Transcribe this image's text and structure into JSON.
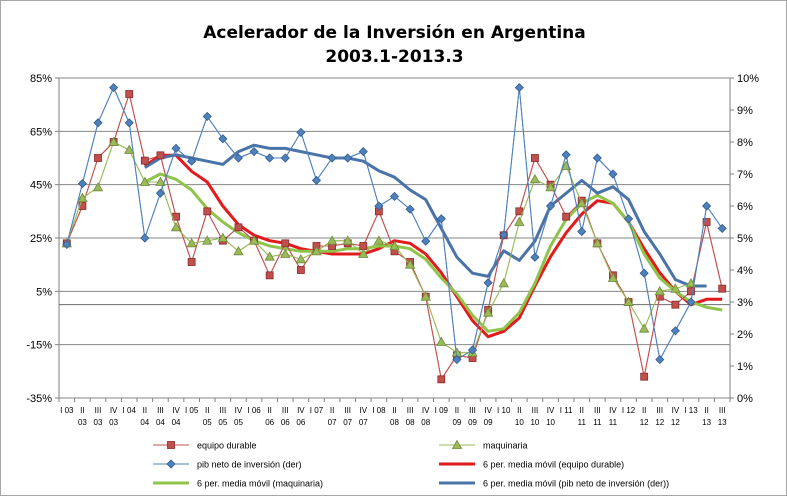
{
  "chart_data": {
    "type": "line",
    "title": "Acelerador de la Inversión en Argentina",
    "subtitle": "2003.1-2013.3",
    "y_left": {
      "min": -35,
      "max": 85,
      "ticks": [
        85,
        65,
        45,
        25,
        5,
        -15,
        -35
      ],
      "tick_labels": [
        "85%",
        "65%",
        "45%",
        "25%",
        "5%",
        "-15%",
        "-35%"
      ]
    },
    "y_right": {
      "min": 0,
      "max": 10,
      "ticks": [
        0,
        1,
        2,
        3,
        4,
        5,
        6,
        7,
        8,
        9,
        10
      ],
      "tick_labels": [
        "0%",
        "1%",
        "2%",
        "3%",
        "4%",
        "5%",
        "6%",
        "7%",
        "8%",
        "9%",
        "10%"
      ]
    },
    "x_quarters": [
      "I",
      "II",
      "III",
      "IV",
      "I",
      "II",
      "III",
      "IV",
      "I",
      "II",
      "III",
      "IV",
      "I",
      "II",
      "III",
      "IV",
      "I",
      "II",
      "III",
      "IV",
      "I",
      "II",
      "III",
      "IV",
      "I",
      "II",
      "III",
      "IV",
      "I",
      "II",
      "III",
      "IV",
      "I",
      "II",
      "III",
      "IV",
      "I",
      "II",
      "III",
      "IV",
      "I",
      "II",
      "III"
    ],
    "x_years": [
      "03",
      "03",
      "03",
      "03",
      "04",
      "04",
      "04",
      "04",
      "05",
      "05",
      "05",
      "05",
      "06",
      "06",
      "06",
      "06",
      "07",
      "07",
      "07",
      "07",
      "08",
      "08",
      "08",
      "08",
      "09",
      "09",
      "09",
      "09",
      "10",
      "10",
      "10",
      "10",
      "11",
      "11",
      "11",
      "11",
      "12",
      "12",
      "12",
      "12",
      "13",
      "13",
      "13"
    ],
    "x_year_row1_idx": [
      0,
      4,
      8,
      12,
      16,
      20,
      24,
      28,
      32,
      36,
      40
    ],
    "x_year_row2_idx": [
      1,
      2,
      3,
      5,
      6,
      7,
      9,
      10,
      11,
      13,
      14,
      15,
      17,
      18,
      19,
      21,
      22,
      23,
      25,
      26,
      27,
      29,
      30,
      31,
      33,
      34,
      35,
      37,
      38,
      39,
      41,
      42
    ],
    "series": [
      {
        "name": "equipo durable",
        "axis": "left",
        "color": "#c0504d",
        "marker": "square",
        "values": [
          23,
          37,
          55,
          61,
          79,
          54,
          56,
          33,
          16,
          35,
          24,
          29,
          24,
          11,
          23,
          13,
          22,
          22,
          23,
          22,
          35,
          20,
          16,
          3,
          -28,
          -19,
          -20,
          -2,
          26,
          35,
          55,
          45,
          33,
          39,
          23,
          11,
          1,
          -27,
          3,
          0,
          5,
          31,
          6
        ]
      },
      {
        "name": "maquinaria",
        "axis": "left",
        "color": "#9bbb59",
        "marker": "triangle",
        "values": [
          23,
          40,
          44,
          61,
          58,
          46,
          46,
          29,
          23,
          24,
          25,
          20,
          24,
          18,
          19,
          17,
          20,
          24,
          24,
          19,
          24,
          22,
          15,
          3,
          -14,
          -18,
          -18,
          -3,
          8,
          31,
          47,
          44,
          52,
          38,
          23,
          10,
          1,
          -9,
          5,
          6,
          8,
          null,
          null
        ]
      },
      {
        "name": "pib neto de inversión (der)",
        "axis": "right",
        "color": "#4f81bd",
        "marker": "diamond",
        "values": [
          4.8,
          6.7,
          8.6,
          9.7,
          8.6,
          5.0,
          6.4,
          7.8,
          7.4,
          8.8,
          8.1,
          7.5,
          7.7,
          7.5,
          7.5,
          8.3,
          6.8,
          7.5,
          7.5,
          7.7,
          6.0,
          6.3,
          5.9,
          4.9,
          5.6,
          1.2,
          1.5,
          3.6,
          5.1,
          9.7,
          4.4,
          6.0,
          7.6,
          5.2,
          7.5,
          7.0,
          5.6,
          3.9,
          1.2,
          2.1,
          3.0,
          6.0,
          5.3
        ]
      },
      {
        "name": "6 per. media móvil (equipo durable)",
        "axis": "left",
        "color": "#e31a1c",
        "marker": "none",
        "width": 3,
        "values": [
          null,
          null,
          null,
          null,
          null,
          52,
          56,
          56,
          50,
          46,
          37,
          30,
          26,
          24,
          23,
          21,
          20,
          19,
          19,
          19,
          21,
          24,
          23,
          19,
          12,
          3,
          -6,
          -12,
          -10,
          -5,
          7,
          18,
          27,
          34,
          39,
          38,
          31,
          21,
          12,
          5,
          0,
          2,
          2
        ]
      },
      {
        "name": "6 per. media móvil (maquinaria)",
        "axis": "left",
        "color": "#8fc44a",
        "marker": "none",
        "width": 3,
        "values": [
          null,
          null,
          null,
          null,
          null,
          46,
          49,
          47,
          43,
          36,
          31,
          27,
          24,
          22,
          21,
          20,
          20,
          20,
          21,
          21,
          22,
          22,
          21,
          17,
          10,
          4,
          -4,
          -10,
          -9,
          -3,
          8,
          22,
          32,
          38,
          41,
          38,
          31,
          19,
          10,
          5,
          1,
          -1,
          -2
        ]
      },
      {
        "name": "6 per. media móvil (pib neto de inversión (der))",
        "axis": "right",
        "color": "#4a73a8",
        "marker": "none",
        "width": 3,
        "values": [
          null,
          null,
          null,
          null,
          null,
          7.2,
          7.5,
          7.6,
          7.5,
          7.4,
          7.3,
          7.7,
          7.9,
          7.8,
          7.8,
          7.7,
          7.6,
          7.5,
          7.5,
          7.4,
          7.1,
          6.9,
          6.5,
          6.2,
          5.3,
          4.4,
          3.9,
          3.8,
          4.6,
          4.3,
          4.9,
          6.0,
          6.4,
          6.8,
          6.4,
          6.6,
          6.2,
          5.2,
          4.5,
          3.7,
          3.5,
          3.5,
          null
        ]
      }
    ],
    "legend_position": "bottom",
    "grid": "horizontal"
  }
}
